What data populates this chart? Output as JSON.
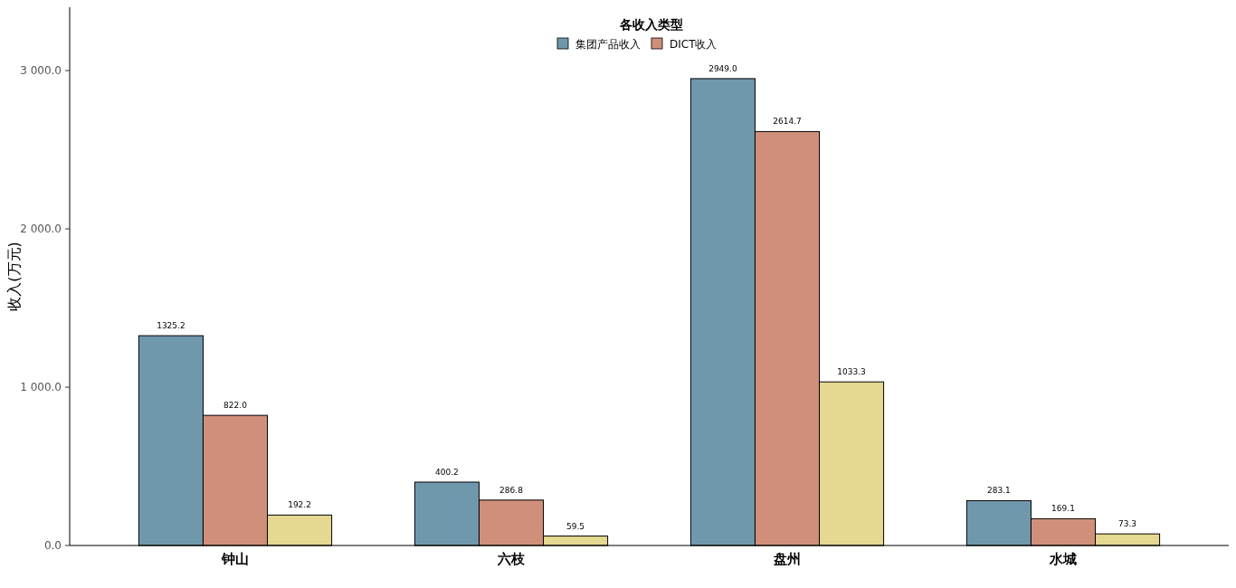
{
  "chart_data": {
    "type": "bar",
    "categories": [
      "钟山",
      "六枝",
      "盘州",
      "水城"
    ],
    "ylabel": "收入(万元)",
    "legend_title": "各收入类型",
    "legend": "top",
    "grid": false,
    "ylim": [
      0,
      3400
    ],
    "yticks": [
      {
        "value": 0,
        "label": "0.0"
      },
      {
        "value": 1000,
        "label": "1 000.0"
      },
      {
        "value": 2000,
        "label": "2 000.0"
      },
      {
        "value": 3000,
        "label": "3 000.0"
      }
    ],
    "series": [
      {
        "name": "集团产品收入",
        "color": "#7098ad",
        "values": [
          1325.2,
          400.2,
          2949.0,
          283.1
        ],
        "value_labels": [
          "1325.2",
          "400.2",
          "2949.0",
          "283.1"
        ]
      },
      {
        "name": "DICT收入",
        "color": "#d08f7a",
        "values": [
          822.0,
          286.8,
          2614.7,
          169.1
        ],
        "value_labels": [
          "822.0",
          "286.8",
          "2614.7",
          "169.1"
        ]
      },
      {
        "color": "#e5d890",
        "values": [
          192.2,
          59.5,
          1033.3,
          73.3
        ],
        "value_labels": [
          "192.2",
          "59.5",
          "1033.3",
          "73.3"
        ]
      }
    ]
  }
}
